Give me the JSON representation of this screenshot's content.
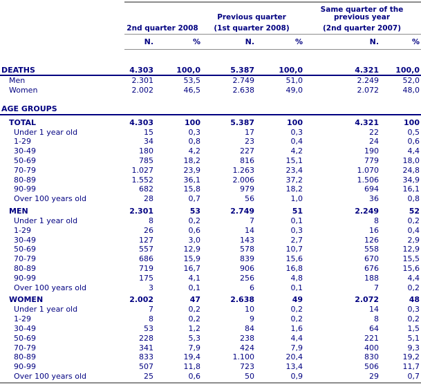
{
  "colors": {
    "text": "#000080",
    "rule_gray": "#8c8c8c",
    "rule_navy": "#000080",
    "background": "#ffffff"
  },
  "header": {
    "groups": [
      {
        "title": "",
        "subtitle": "2nd quarter 2008"
      },
      {
        "title": "Previous quarter",
        "subtitle": "(1st quarter 2008)"
      },
      {
        "title": "Same quarter of the previous year",
        "subtitle": "(2nd quarter 2007)"
      }
    ],
    "sub_cols": [
      "N.",
      "%"
    ]
  },
  "rows": [
    {
      "label": "DEATHS",
      "type": "deaths",
      "values": [
        "4.303",
        "100,0",
        "5.387",
        "100,0",
        "4.321",
        "100,0"
      ]
    },
    {
      "label": "Men",
      "type": "sub",
      "values": [
        "2.301",
        "53,5",
        "2.749",
        "51,0",
        "2.249",
        "52,0"
      ]
    },
    {
      "label": "Women",
      "type": "sub",
      "values": [
        "2.002",
        "46,5",
        "2.638",
        "49,0",
        "2.072",
        "48,0"
      ]
    },
    {
      "label": "AGE GROUPS",
      "type": "section",
      "values": []
    },
    {
      "label": "TOTAL",
      "type": "group",
      "values": [
        "4.303",
        "100",
        "5.387",
        "100",
        "4.321",
        "100"
      ]
    },
    {
      "label": "Under 1 year old",
      "type": "data",
      "values": [
        "15",
        "0,3",
        "17",
        "0,3",
        "22",
        "0,5"
      ]
    },
    {
      "label": "1-29",
      "type": "data",
      "values": [
        "34",
        "0,8",
        "23",
        "0,4",
        "24",
        "0,6"
      ]
    },
    {
      "label": "30-49",
      "type": "data",
      "values": [
        "180",
        "4,2",
        "227",
        "4,2",
        "190",
        "4,4"
      ]
    },
    {
      "label": "50-69",
      "type": "data",
      "values": [
        "785",
        "18,2",
        "816",
        "15,1",
        "779",
        "18,0"
      ]
    },
    {
      "label": "70-79",
      "type": "data",
      "values": [
        "1.027",
        "23,9",
        "1.263",
        "23,4",
        "1.070",
        "24,8"
      ]
    },
    {
      "label": "80-89",
      "type": "data",
      "values": [
        "1.552",
        "36,1",
        "2.006",
        "37,2",
        "1.506",
        "34,9"
      ]
    },
    {
      "label": "90-99",
      "type": "data",
      "values": [
        "682",
        "15,8",
        "979",
        "18,2",
        "694",
        "16,1"
      ]
    },
    {
      "label": "Over 100 years old",
      "type": "data",
      "values": [
        "28",
        "0,7",
        "56",
        "1,0",
        "36",
        "0,8"
      ]
    },
    {
      "label": "MEN",
      "type": "group",
      "values": [
        "2.301",
        "53",
        "2.749",
        "51",
        "2.249",
        "52"
      ]
    },
    {
      "label": "Under 1 year old",
      "type": "data",
      "values": [
        "8",
        "0,2",
        "7",
        "0,1",
        "8",
        "0,2"
      ]
    },
    {
      "label": "1-29",
      "type": "data",
      "values": [
        "26",
        "0,6",
        "14",
        "0,3",
        "16",
        "0,4"
      ]
    },
    {
      "label": "30-49",
      "type": "data",
      "values": [
        "127",
        "3,0",
        "143",
        "2,7",
        "126",
        "2,9"
      ]
    },
    {
      "label": "50-69",
      "type": "data",
      "values": [
        "557",
        "12,9",
        "578",
        "10,7",
        "558",
        "12,9"
      ]
    },
    {
      "label": "70-79",
      "type": "data",
      "values": [
        "686",
        "15,9",
        "839",
        "15,6",
        "670",
        "15,5"
      ]
    },
    {
      "label": "80-89",
      "type": "data",
      "values": [
        "719",
        "16,7",
        "906",
        "16,8",
        "676",
        "15,6"
      ]
    },
    {
      "label": "90-99",
      "type": "data",
      "values": [
        "175",
        "4,1",
        "256",
        "4,8",
        "188",
        "4,4"
      ]
    },
    {
      "label": "Over 100 years old",
      "type": "data",
      "values": [
        "3",
        "0,1",
        "6",
        "0,1",
        "7",
        "0,2"
      ]
    },
    {
      "label": "WOMEN",
      "type": "group",
      "values": [
        "2.002",
        "47",
        "2.638",
        "49",
        "2.072",
        "48"
      ]
    },
    {
      "label": "Under 1 year old",
      "type": "data",
      "values": [
        "7",
        "0,2",
        "10",
        "0,2",
        "14",
        "0,3"
      ]
    },
    {
      "label": "1-29",
      "type": "data",
      "values": [
        "8",
        "0,2",
        "9",
        "0,2",
        "8",
        "0,2"
      ]
    },
    {
      "label": "30-49",
      "type": "data",
      "values": [
        "53",
        "1,2",
        "84",
        "1,6",
        "64",
        "1,5"
      ]
    },
    {
      "label": "50-69",
      "type": "data",
      "values": [
        "228",
        "5,3",
        "238",
        "4,4",
        "221",
        "5,1"
      ]
    },
    {
      "label": "70-79",
      "type": "data",
      "values": [
        "341",
        "7,9",
        "424",
        "7,9",
        "400",
        "9,3"
      ]
    },
    {
      "label": "80-89",
      "type": "data",
      "values": [
        "833",
        "19,4",
        "1.100",
        "20,4",
        "830",
        "19,2"
      ]
    },
    {
      "label": "90-99",
      "type": "data",
      "values": [
        "507",
        "11,8",
        "723",
        "13,4",
        "506",
        "11,7"
      ]
    },
    {
      "label": "Over 100 years old",
      "type": "data",
      "values": [
        "25",
        "0,6",
        "50",
        "0,9",
        "29",
        "0,7"
      ]
    }
  ]
}
